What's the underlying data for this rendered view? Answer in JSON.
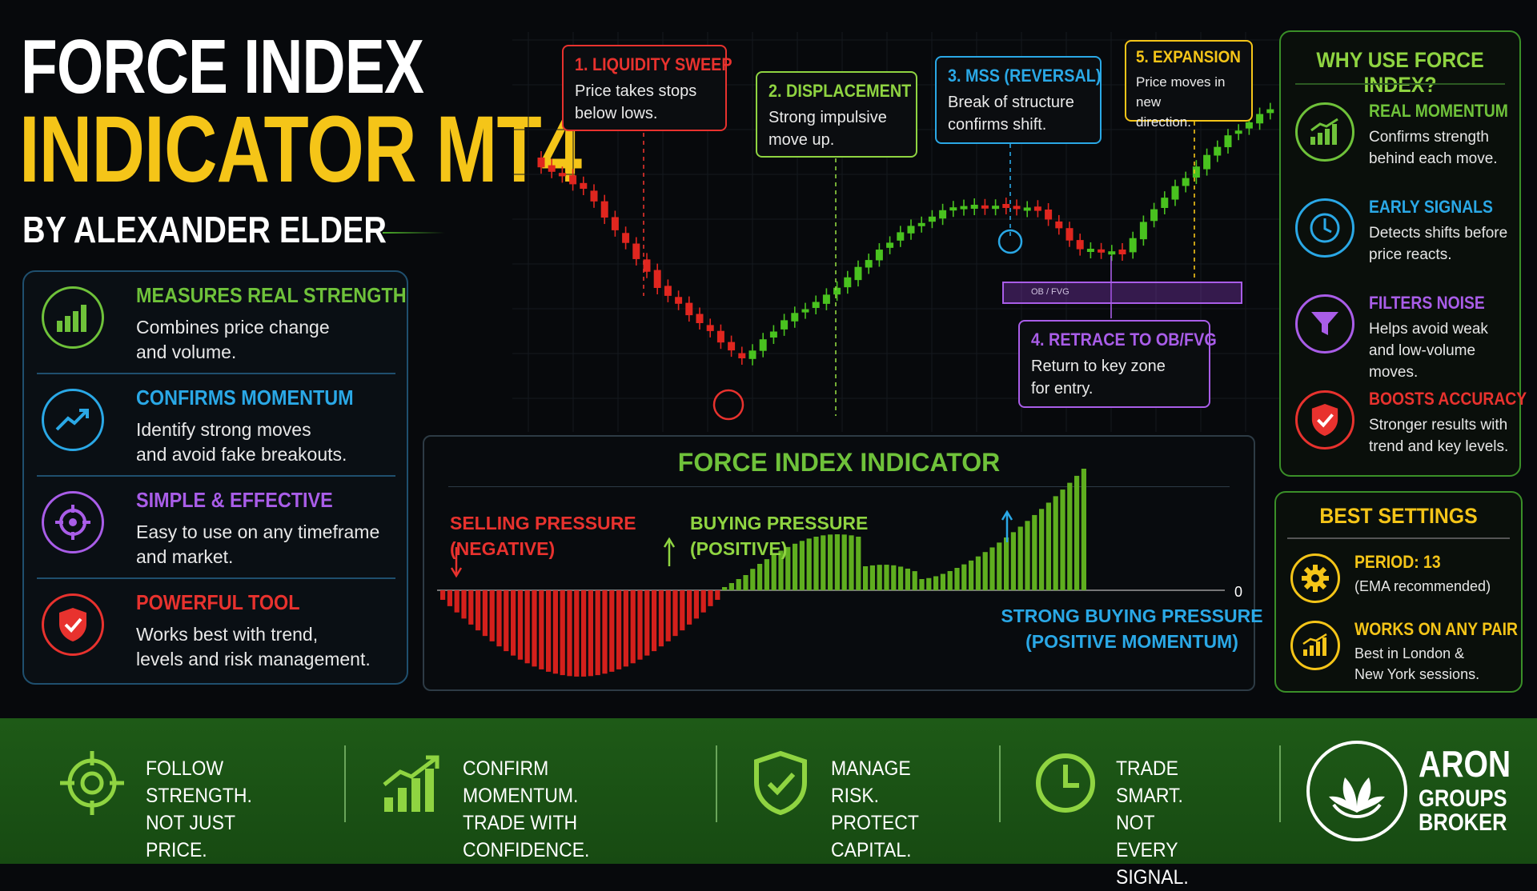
{
  "title": {
    "line1": "FORCE INDEX",
    "line2": "INDICATOR MT4",
    "byline": "BY ALEXANDER ELDER"
  },
  "features": [
    {
      "heading": "MEASURES REAL STRENGTH",
      "desc": "Combines price change\nand volume.",
      "color": "#6fc23a",
      "icon": "bar-chart-icon"
    },
    {
      "heading": "CONFIRMS MOMENTUM",
      "desc": "Identify strong moves\nand avoid fake breakouts.",
      "color": "#2aa8e6",
      "icon": "trend-up-icon"
    },
    {
      "heading": "SIMPLE & EFFECTIVE",
      "desc": "Easy to use on any timeframe\nand market.",
      "color": "#a95de8",
      "icon": "target-icon"
    },
    {
      "heading": "POWERFUL TOOL",
      "desc": "Works best with trend,\nlevels and risk management.",
      "color": "#e8322e",
      "icon": "shield-check-icon"
    }
  ],
  "callouts": {
    "c1": {
      "title": "1. LIQUIDITY SWEEP",
      "desc": "Price takes stops\nbelow lows.",
      "color": "#e8322e"
    },
    "c2": {
      "title": "2. DISPLACEMENT",
      "desc": "Strong impulsive\nmove up.",
      "color": "#8fd441"
    },
    "c3": {
      "title": "3. MSS (REVERSAL)",
      "desc": "Break of structure\nconfirms shift.",
      "color": "#2aa8e6"
    },
    "c4": {
      "title": "4. RETRACE TO OB/FVG",
      "desc": "Return to key zone\nfor entry.",
      "color": "#a95de8"
    },
    "c5": {
      "title": "5. EXPANSION",
      "desc": "Price moves in new\ndirection.",
      "color": "#f5c518"
    }
  },
  "zone_label": "OB / FVG",
  "force_index": {
    "title": "FORCE INDEX INDICATOR",
    "selling": "SELLING PRESSURE\n(NEGATIVE)",
    "buying": "BUYING PRESSURE\n(POSITIVE)",
    "strong": "STRONG BUYING PRESSURE\n(POSITIVE MOMENTUM)",
    "zero": "0"
  },
  "why": {
    "title": "WHY USE FORCE INDEX?",
    "items": [
      {
        "heading": "REAL MOMENTUM",
        "desc": "Confirms strength\nbehind each move.",
        "color": "#6fc23a",
        "icon": "rising-bars-icon"
      },
      {
        "heading": "EARLY SIGNALS",
        "desc": "Detects shifts before\nprice reacts.",
        "color": "#2aa8e6",
        "icon": "clock-icon"
      },
      {
        "heading": "FILTERS NOISE",
        "desc": "Helps avoid weak\nand low-volume moves.",
        "color": "#a95de8",
        "icon": "filter-icon"
      },
      {
        "heading": "BOOSTS ACCURACY",
        "desc": "Stronger results with\ntrend and key levels.",
        "color": "#e8322e",
        "icon": "shield-check-icon"
      }
    ]
  },
  "settings": {
    "title": "BEST SETTINGS",
    "items": [
      {
        "heading": "PERIOD: 13",
        "desc": "(EMA recommended)",
        "icon": "gear-icon"
      },
      {
        "heading": "WORKS ON ANY PAIR",
        "desc": "Best in London &\nNew York sessions.",
        "icon": "chart-icon"
      }
    ]
  },
  "footer": [
    {
      "text": "FOLLOW STRENGTH.\nNOT JUST PRICE.",
      "icon": "crosshair-icon"
    },
    {
      "text": "CONFIRM MOMENTUM.\nTRADE WITH CONFIDENCE.",
      "icon": "growth-chart-icon"
    },
    {
      "text": "MANAGE RISK.\nPROTECT CAPITAL.",
      "icon": "shield-check-icon"
    },
    {
      "text": "TRADE SMART.\nNOT EVERY SIGNAL.",
      "icon": "clock-icon"
    }
  ],
  "brand": {
    "line1": "ARON",
    "line2": "GROUPS",
    "line3": "BROKER"
  },
  "colors": {
    "green": "#6fc23a",
    "red": "#e8322e",
    "blue": "#2aa8e6",
    "purple": "#a95de8",
    "yellow": "#f5c518"
  }
}
